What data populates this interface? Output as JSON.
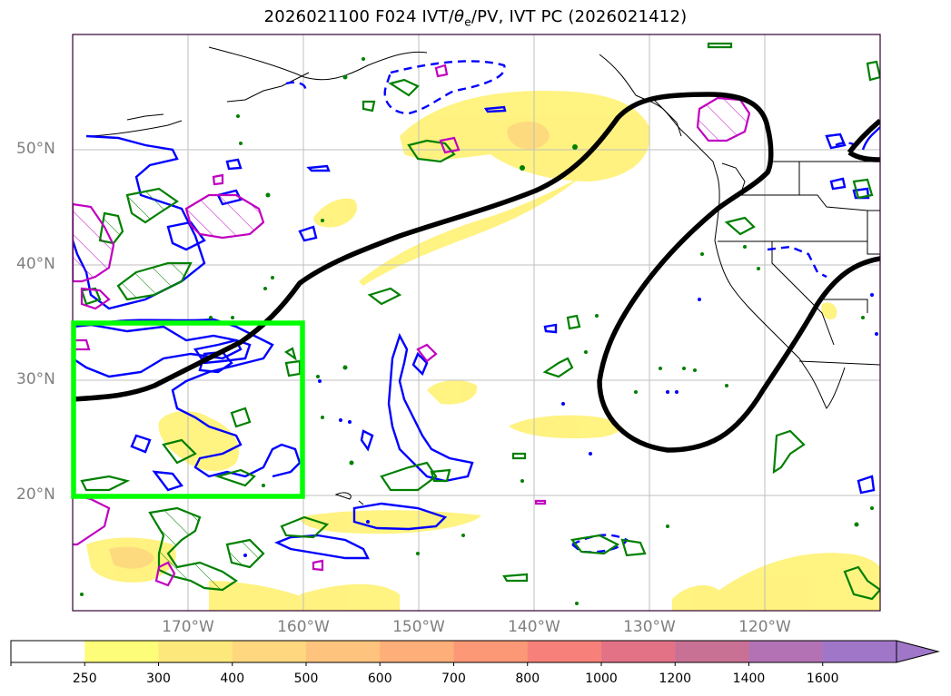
{
  "title": {
    "run": "2026021100 F024 IVT/",
    "theta": "θ",
    "theta_sub": "e",
    "rest": "/PV, IVT PC (2026021412)"
  },
  "lat_labels": [
    "50°N",
    "40°N",
    "30°N",
    "20°N"
  ],
  "lon_labels": [
    "170°W",
    "160°W",
    "150°W",
    "140°W",
    "130°W",
    "120°W"
  ],
  "map": {
    "extent": {
      "lon_min": -180,
      "lon_max": -110,
      "lat_min": 10,
      "lat_max": 60
    },
    "gridlines": true,
    "highlight_box": {
      "lon_min": -180,
      "lon_max": -160,
      "lat_min": 20,
      "lat_max": 35,
      "color": "#00ff00"
    },
    "contour_colors": {
      "ivt_pc": "#000000",
      "theta_e": "#0000ff",
      "pv_green": "#008000",
      "pv_magenta": "#c000c0",
      "ivt_fill": "#fff27a"
    }
  },
  "colorbar": {
    "levels": [
      "250",
      "300",
      "400",
      "500",
      "600",
      "700",
      "800",
      "1000",
      "1200",
      "1400",
      "1600"
    ],
    "colors": [
      "#ffffff",
      "#fdfd7a",
      "#fde97b",
      "#fed77e",
      "#fec37c",
      "#feae78",
      "#fd9876",
      "#f7817a",
      "#e47287",
      "#c97195",
      "#b272b4",
      "#a077c8"
    ],
    "extend": "max"
  }
}
